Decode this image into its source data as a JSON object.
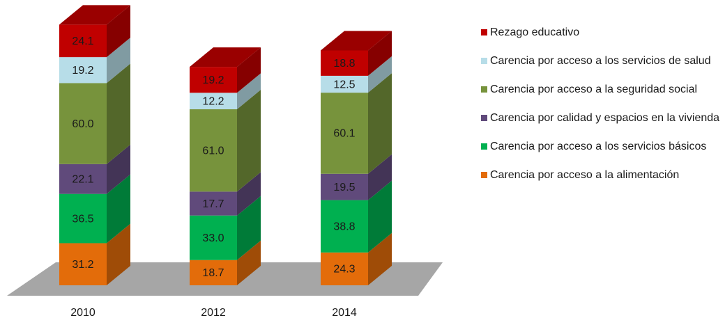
{
  "chart_data": {
    "type": "bar3d-stacked",
    "categories": [
      "2010",
      "2012",
      "2014"
    ],
    "series": [
      {
        "name": "Carencia por acceso a la alimentación",
        "color": "#e36c0a",
        "values": [
          31.2,
          18.7,
          24.3
        ],
        "value_labels": [
          "31.2",
          "18.7",
          "24.3"
        ]
      },
      {
        "name": "Carencia por acceso a los servicios básicos",
        "color": "#00b050",
        "values": [
          36.5,
          33.0,
          38.8
        ],
        "value_labels": [
          "36.5",
          "33.0",
          "38.8"
        ]
      },
      {
        "name": "Carencia por calidad y espacios en la vivienda",
        "color": "#604a7b",
        "values": [
          22.1,
          17.7,
          19.5
        ],
        "value_labels": [
          "22.1",
          "17.7",
          "19.5"
        ]
      },
      {
        "name": "Carencia por acceso a la seguridad social",
        "color": "#77933c",
        "values": [
          60.0,
          61.0,
          60.1
        ],
        "value_labels": [
          "60.0",
          "61.0",
          "60.1"
        ]
      },
      {
        "name": "Carencia por acceso a los servicios de salud",
        "color": "#b7dde8",
        "values": [
          19.2,
          12.2,
          12.5
        ],
        "value_labels": [
          "19.2",
          "12.2",
          "12.5"
        ]
      },
      {
        "name": "Rezago educativo",
        "color": "#c00000",
        "values": [
          24.1,
          19.2,
          18.8
        ],
        "value_labels": [
          "24.1",
          "19.2",
          "18.8"
        ]
      }
    ]
  }
}
